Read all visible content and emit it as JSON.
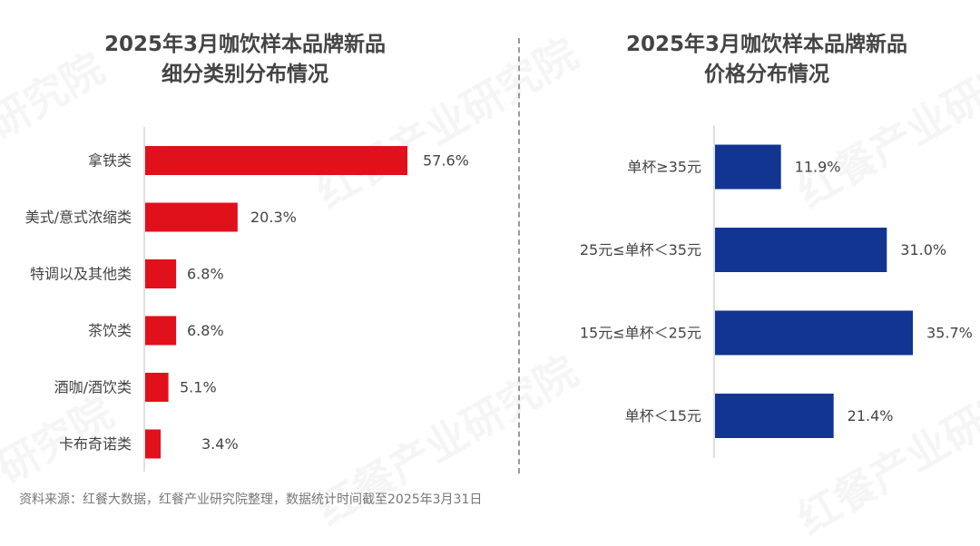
{
  "watermark": "红餐产业研究院",
  "watermark_short": "研究院",
  "footer": "资料来源：红餐大数据，红餐产业研究院整理，数据统计时间截至2025年3月31日",
  "colors": {
    "left_bar": "#E0111B",
    "right_bar": "#123592",
    "axis": "#bfbfbf",
    "text": "#444444"
  },
  "chart_data": [
    {
      "type": "bar",
      "orientation": "horizontal",
      "title_lines": [
        "2025年3月咖饮样本品牌新品",
        "细分类别分布情况"
      ],
      "categories": [
        "拿铁类",
        "美式/意式浓缩类",
        "特调以及其他类",
        "茶饮类",
        "酒咖/酒饮类",
        "卡布奇诺类"
      ],
      "values": [
        57.6,
        20.3,
        6.8,
        6.8,
        5.1,
        3.4
      ],
      "labels": [
        "57.6%",
        "20.3%",
        "6.8%",
        "6.8%",
        "5.1%",
        "3.4%"
      ],
      "unit": "%",
      "xlim": [
        0,
        57.6
      ],
      "color": "#E0111B"
    },
    {
      "type": "bar",
      "orientation": "horizontal",
      "title_lines": [
        "2025年3月咖饮样本品牌新品",
        "价格分布情况"
      ],
      "categories": [
        "单杯≥35元",
        "25元≤单杯＜35元",
        "15元≤单杯＜25元",
        "单杯＜15元"
      ],
      "values": [
        11.9,
        31.0,
        35.7,
        21.4
      ],
      "labels": [
        "11.9%",
        "31.0%",
        "35.7%",
        "21.4%"
      ],
      "unit": "%",
      "xlim": [
        0,
        35.7
      ],
      "color": "#123592"
    }
  ]
}
